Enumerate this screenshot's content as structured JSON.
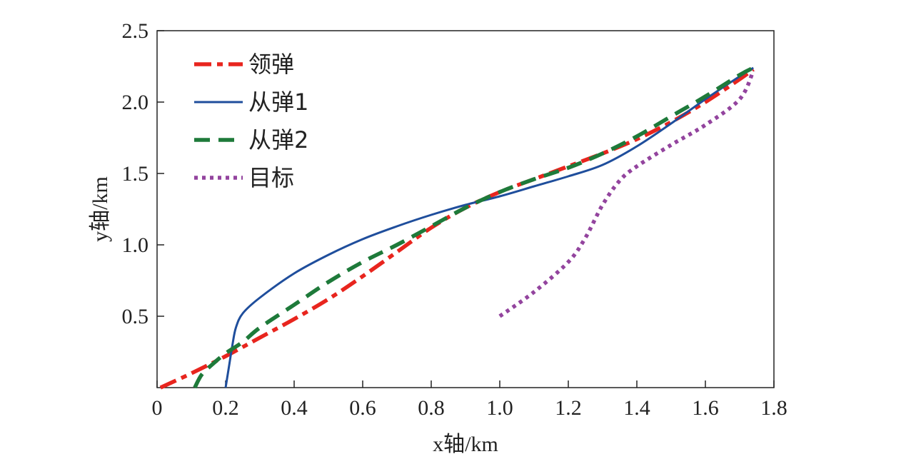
{
  "chart_data": {
    "type": "line",
    "xlabel": "x轴/km",
    "ylabel": "y轴/km",
    "xlim": [
      0,
      1.8
    ],
    "ylim": [
      0,
      2.5
    ],
    "xticks": [
      "0",
      "0.2",
      "0.4",
      "0.6",
      "0.8",
      "1.0",
      "1.2",
      "1.4",
      "1.6",
      "1.8"
    ],
    "yticks": [
      "0.5",
      "1.0",
      "1.5",
      "2.0",
      "2.5"
    ],
    "xtick_values": [
      0,
      0.2,
      0.4,
      0.6,
      0.8,
      1.0,
      1.2,
      1.4,
      1.6,
      1.8
    ],
    "ytick_values": [
      0.5,
      1.0,
      1.5,
      2.0,
      2.5
    ],
    "grid": false,
    "legend_position": "top-left",
    "series": [
      {
        "name": "领弹",
        "color": "#e8251e",
        "style": "dashdot",
        "x": [
          0.01,
          0.1,
          0.2,
          0.3,
          0.4,
          0.5,
          0.6,
          0.7,
          0.8,
          0.9,
          1.0,
          1.1,
          1.2,
          1.3,
          1.4,
          1.5,
          1.6,
          1.7,
          1.74
        ],
        "y": [
          0.0,
          0.1,
          0.22,
          0.35,
          0.48,
          0.62,
          0.78,
          0.95,
          1.12,
          1.26,
          1.37,
          1.46,
          1.55,
          1.64,
          1.74,
          1.86,
          2.0,
          2.16,
          2.23
        ]
      },
      {
        "name": "从弹1",
        "color": "#1f4e9c",
        "style": "solid",
        "x": [
          0.2,
          0.21,
          0.22,
          0.23,
          0.25,
          0.3,
          0.4,
          0.5,
          0.6,
          0.7,
          0.8,
          0.9,
          1.0,
          1.1,
          1.2,
          1.3,
          1.4,
          1.5,
          1.6,
          1.7,
          1.74
        ],
        "y": [
          0.0,
          0.15,
          0.3,
          0.42,
          0.52,
          0.63,
          0.8,
          0.93,
          1.04,
          1.13,
          1.21,
          1.28,
          1.34,
          1.41,
          1.48,
          1.56,
          1.69,
          1.85,
          2.02,
          2.18,
          2.24
        ]
      },
      {
        "name": "从弹2",
        "color": "#1e7a3a",
        "style": "dashed",
        "x": [
          0.11,
          0.13,
          0.16,
          0.2,
          0.25,
          0.3,
          0.4,
          0.5,
          0.6,
          0.7,
          0.8,
          0.9,
          1.0,
          1.1,
          1.2,
          1.3,
          1.4,
          1.5,
          1.6,
          1.7,
          1.74
        ],
        "y": [
          0.0,
          0.09,
          0.16,
          0.24,
          0.32,
          0.42,
          0.58,
          0.74,
          0.88,
          1.0,
          1.13,
          1.26,
          1.37,
          1.46,
          1.54,
          1.64,
          1.76,
          1.9,
          2.04,
          2.19,
          2.24
        ]
      },
      {
        "name": "目标",
        "color": "#93449e",
        "style": "dotted",
        "x": [
          1.0,
          1.1,
          1.2,
          1.25,
          1.3,
          1.35,
          1.4,
          1.5,
          1.6,
          1.7,
          1.74
        ],
        "y": [
          0.5,
          0.67,
          0.88,
          1.05,
          1.28,
          1.45,
          1.55,
          1.7,
          1.84,
          2.02,
          2.22
        ]
      }
    ]
  }
}
